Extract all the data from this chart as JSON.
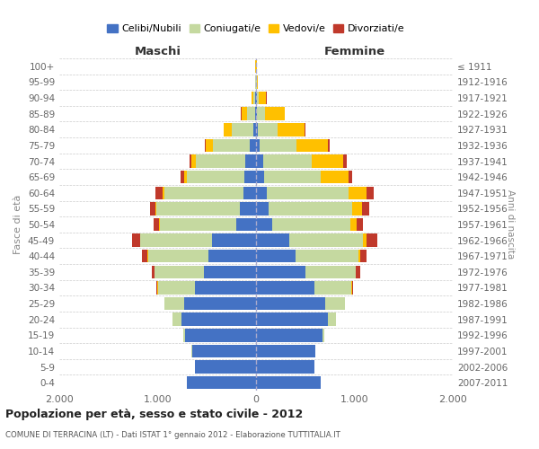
{
  "age_groups": [
    "0-4",
    "5-9",
    "10-14",
    "15-19",
    "20-24",
    "25-29",
    "30-34",
    "35-39",
    "40-44",
    "45-49",
    "50-54",
    "55-59",
    "60-64",
    "65-69",
    "70-74",
    "75-79",
    "80-84",
    "85-89",
    "90-94",
    "95-99",
    "100+"
  ],
  "birth_years": [
    "2007-2011",
    "2002-2006",
    "1997-2001",
    "1992-1996",
    "1987-1991",
    "1982-1986",
    "1977-1981",
    "1972-1976",
    "1967-1971",
    "1962-1966",
    "1957-1961",
    "1952-1956",
    "1947-1951",
    "1942-1946",
    "1937-1941",
    "1932-1936",
    "1927-1931",
    "1922-1926",
    "1917-1921",
    "1912-1916",
    "≤ 1911"
  ],
  "maschi": {
    "celibi": [
      700,
      620,
      650,
      720,
      760,
      730,
      620,
      530,
      480,
      450,
      200,
      160,
      130,
      120,
      110,
      60,
      25,
      10,
      5,
      2,
      2
    ],
    "coniugati": [
      2,
      2,
      5,
      20,
      90,
      200,
      380,
      500,
      620,
      730,
      780,
      850,
      800,
      580,
      500,
      380,
      220,
      80,
      20,
      5,
      2
    ],
    "vedovi": [
      0,
      0,
      0,
      0,
      1,
      1,
      1,
      1,
      1,
      2,
      5,
      10,
      20,
      35,
      50,
      70,
      80,
      60,
      25,
      5,
      1
    ],
    "divorziati": [
      0,
      0,
      0,
      0,
      2,
      5,
      10,
      30,
      60,
      80,
      60,
      60,
      70,
      30,
      20,
      10,
      5,
      2,
      0,
      0,
      0
    ]
  },
  "femmine": {
    "nubili": [
      660,
      590,
      600,
      680,
      730,
      700,
      590,
      500,
      400,
      340,
      160,
      130,
      110,
      80,
      70,
      40,
      15,
      8,
      5,
      2,
      2
    ],
    "coniugate": [
      1,
      1,
      3,
      15,
      80,
      200,
      380,
      510,
      640,
      750,
      800,
      850,
      830,
      580,
      500,
      370,
      200,
      80,
      20,
      5,
      2
    ],
    "vedove": [
      0,
      0,
      0,
      1,
      2,
      3,
      5,
      8,
      15,
      30,
      60,
      100,
      180,
      280,
      320,
      320,
      280,
      200,
      80,
      15,
      2
    ],
    "divorziate": [
      0,
      0,
      0,
      0,
      2,
      5,
      15,
      40,
      70,
      110,
      70,
      70,
      80,
      40,
      30,
      15,
      10,
      5,
      2,
      0,
      0
    ]
  },
  "colors": {
    "celibi": "#4472c4",
    "coniugati": "#c5d9a0",
    "vedovi": "#ffc000",
    "divorziati": "#c0392b"
  },
  "xlim": 2000,
  "title": "Popolazione per età, sesso e stato civile - 2012",
  "subtitle": "COMUNE DI TERRACINA (LT) - Dati ISTAT 1° gennaio 2012 - Elaborazione TUTTITALIA.IT",
  "ylabel": "Fasce di età",
  "ylabel2": "Anni di nascita",
  "legend_labels": [
    "Celibi/Nubili",
    "Coniugati/e",
    "Vedovi/e",
    "Divorziati/e"
  ],
  "background_color": "#ffffff",
  "grid_color": "#cccccc"
}
